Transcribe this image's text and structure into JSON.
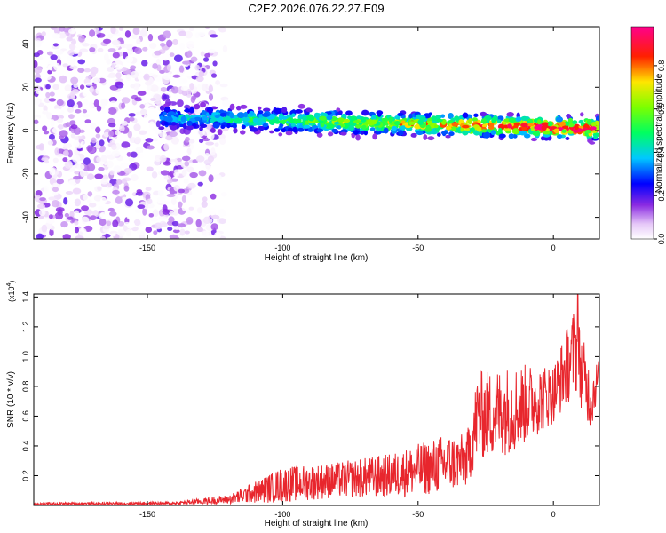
{
  "title": "C2E2.2026.076.22.27.E09",
  "chart_data": [
    {
      "type": "heatmap",
      "xlabel": "Height of straight line (km)",
      "ylabel": "Frequency (Hz)",
      "xlim": [
        -192,
        17
      ],
      "ylim": [
        -50,
        48
      ],
      "x_ticks": [
        -150,
        -100,
        -50,
        0
      ],
      "x_tick_labels": [
        "-150",
        "-100",
        "-50",
        "0"
      ],
      "y_ticks": [
        -40,
        -20,
        0,
        20,
        40
      ],
      "y_tick_labels": [
        "-40",
        "-20",
        "0",
        "20",
        "40"
      ],
      "colorbar": {
        "label": "Normalized spectral amplitude",
        "range": [
          0,
          0.98
        ],
        "ticks": [
          0.0,
          0.2,
          0.4,
          0.6,
          0.8
        ],
        "tick_labels": [
          "0.0",
          "0.2",
          "0.4",
          "0.6",
          "0.8"
        ],
        "colormap": "rainbow (white-violet-blue-cyan-green-yellow-red-magenta)"
      },
      "regions": [
        {
          "name": "noise",
          "x_range": [
            -192,
            -120
          ],
          "freq_range": [
            -50,
            48
          ],
          "amplitude": [
            0.0,
            0.12
          ]
        },
        {
          "name": "signal-band",
          "x_range": [
            -145,
            17
          ],
          "center_freq_start": 6,
          "center_freq_end": 1,
          "half_width": 4,
          "amplitude_start": 0.25,
          "amplitude_end": 0.95
        }
      ]
    },
    {
      "type": "line",
      "xlabel": "Height of straight line (km)",
      "ylabel": "SNR (10 * v/v)",
      "y_scale_label": "(x10",
      "y_scale_exp": "4",
      "y_scale_close": ")",
      "xlim": [
        -192,
        17
      ],
      "ylim": [
        0,
        1.42
      ],
      "x_ticks": [
        -150,
        -100,
        -50,
        0
      ],
      "x_tick_labels": [
        "-150",
        "-100",
        "-50",
        "0"
      ],
      "y_ticks": [
        0.2,
        0.4,
        0.6,
        0.8,
        1.0,
        1.2,
        1.4
      ],
      "y_tick_labels": [
        "0.2",
        "0.4",
        "0.6",
        "0.8",
        "1.0",
        "1.2",
        "1.4"
      ],
      "color": "#e8262d",
      "envelope": [
        {
          "x": -192,
          "mean": 0.01,
          "spread": 0.01
        },
        {
          "x": -140,
          "mean": 0.015,
          "spread": 0.01
        },
        {
          "x": -120,
          "mean": 0.04,
          "spread": 0.03
        },
        {
          "x": -100,
          "mean": 0.14,
          "spread": 0.12
        },
        {
          "x": -80,
          "mean": 0.17,
          "spread": 0.12
        },
        {
          "x": -60,
          "mean": 0.2,
          "spread": 0.15
        },
        {
          "x": -40,
          "mean": 0.28,
          "spread": 0.2
        },
        {
          "x": -32,
          "mean": 0.3,
          "spread": 0.18
        },
        {
          "x": -28,
          "mean": 0.6,
          "spread": 0.3
        },
        {
          "x": -15,
          "mean": 0.65,
          "spread": 0.3
        },
        {
          "x": 0,
          "mean": 0.75,
          "spread": 0.2
        },
        {
          "x": 8,
          "mean": 1.05,
          "spread": 0.3
        },
        {
          "x": 14,
          "mean": 0.7,
          "spread": 0.2
        },
        {
          "x": 17,
          "mean": 0.9,
          "spread": 0.1
        }
      ],
      "peak": {
        "x": 9,
        "y": 1.42
      }
    }
  ]
}
